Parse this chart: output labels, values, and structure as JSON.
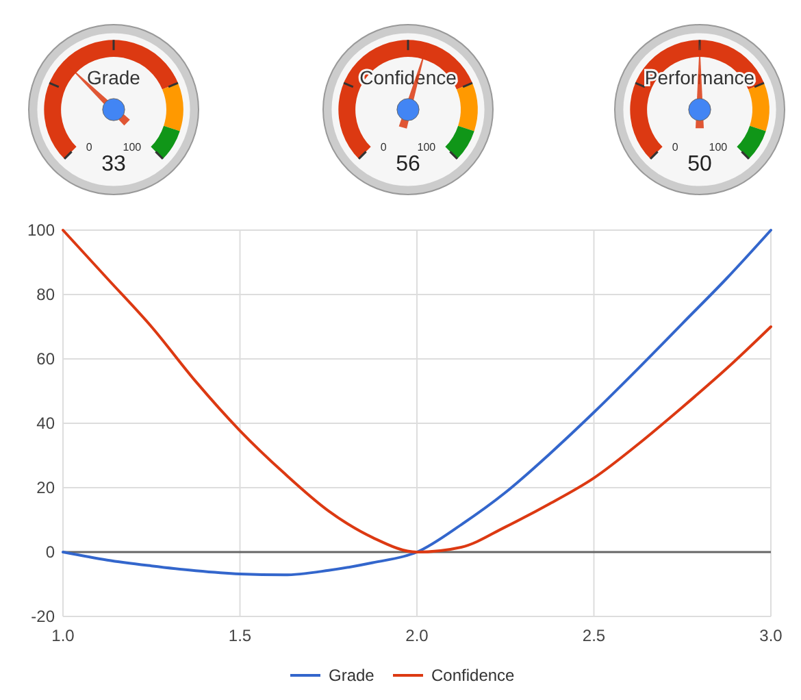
{
  "chart_data": [
    {
      "type": "other",
      "title": "Grade",
      "values": [
        33
      ],
      "data_labels": true,
      "annotations": [
        "0",
        "100"
      ]
    },
    {
      "type": "other",
      "title": "Confidence",
      "values": [
        56
      ],
      "data_labels": true,
      "annotations": [
        "0",
        "100"
      ]
    },
    {
      "type": "other",
      "title": "Performance",
      "values": [
        50
      ],
      "data_labels": true,
      "annotations": [
        "0",
        "100"
      ]
    },
    {
      "type": "line",
      "x": [
        1.0,
        1.125,
        1.25,
        1.375,
        1.5,
        1.625,
        1.75,
        1.875,
        2.0,
        2.125,
        2.25,
        2.375,
        2.5,
        2.625,
        2.75,
        2.875,
        3.0
      ],
      "series": [
        {
          "name": "Grade",
          "color": "#3366cc",
          "values": [
            0,
            -2.5,
            -4.3,
            -5.8,
            -6.8,
            -7.1,
            -5.7,
            -3.3,
            0,
            8.5,
            18.5,
            30.5,
            43.4,
            57,
            71,
            85,
            100
          ]
        },
        {
          "name": "Confidence",
          "color": "#dc3912",
          "values": [
            100,
            85,
            70,
            53,
            37.7,
            24.5,
            12.8,
            4.5,
            0,
            1.5,
            7.8,
            15,
            23,
            33.5,
            45,
            57,
            70
          ]
        }
      ],
      "xlim": [
        1,
        3
      ],
      "xticks": [
        {
          "value": 1,
          "label": "1.0"
        },
        {
          "value": 1.5,
          "label": "1.5"
        },
        {
          "value": 2,
          "label": "2.0"
        },
        {
          "value": 2.5,
          "label": "2.5"
        },
        {
          "value": 3,
          "label": "3.0"
        }
      ],
      "ylim": [
        -20,
        100
      ],
      "yticks": [
        -20,
        0,
        20,
        40,
        60,
        80,
        100
      ],
      "grid": true,
      "legend": "bottom",
      "ref_lines": [
        {
          "axis": "y",
          "value": 0,
          "color": "#666666"
        }
      ]
    }
  ]
}
